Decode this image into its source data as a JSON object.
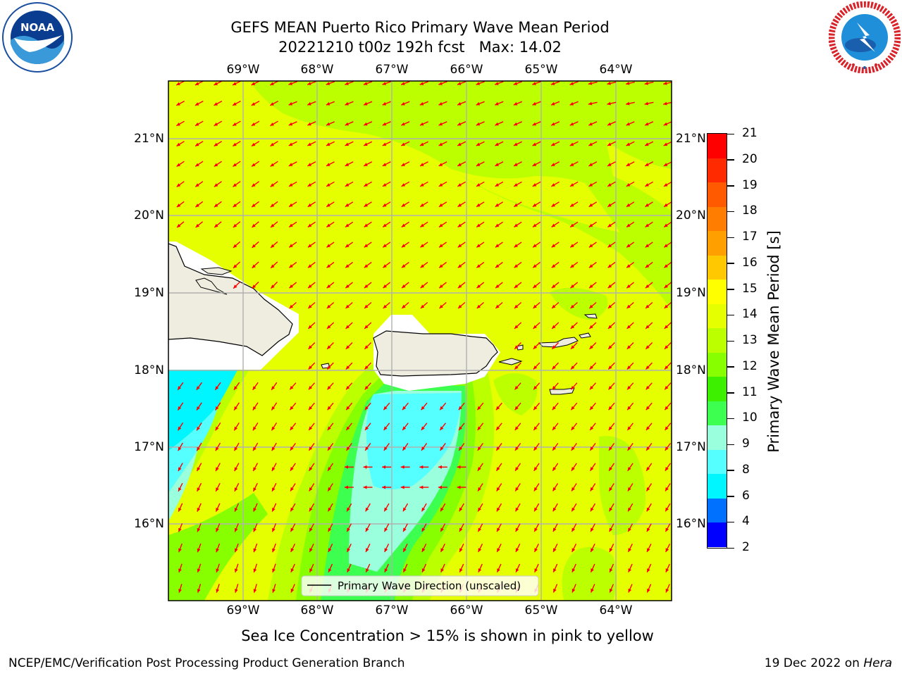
{
  "header": {
    "title_line1": "GEFS MEAN Puerto Rico Primary Wave Mean Period",
    "title_line2": "20221210 t00z 192h fcst   Max: 14.02"
  },
  "logos": {
    "noaa_text": "NOAA",
    "noaa_ring_text": "NATIONAL OCEANIC AND ATMOSPHERIC ADMINISTRATION · U.S. DEPARTMENT OF COMMERCE",
    "nws_ring_text": "NATIONAL WEATHER SERVICE"
  },
  "map": {
    "lon_labels": [
      "69°W",
      "68°W",
      "67°W",
      "66°W",
      "65°W",
      "64°W"
    ],
    "lat_labels": [
      "21°N",
      "20°N",
      "19°N",
      "18°N",
      "17°N",
      "16°N"
    ],
    "legend_label": "Primary Wave Direction (unscaled)",
    "arrow_color": "#ff0000",
    "land_color": "#efede0"
  },
  "colorbar": {
    "label": "Primary Wave Mean Period [s]",
    "ticks": [
      "21",
      "20",
      "19",
      "18",
      "17",
      "16",
      "15",
      "14",
      "13",
      "12",
      "11",
      "10",
      "9",
      "8",
      "6",
      "4",
      "2"
    ],
    "colors": [
      "#ff0000",
      "#ff2a00",
      "#ff5a00",
      "#ff7d00",
      "#ffa000",
      "#ffc800",
      "#ffff00",
      "#e6ff00",
      "#bbff00",
      "#88ff00",
      "#3cf000",
      "#3cff50",
      "#99ffdd",
      "#55ffff",
      "#00f6ff",
      "#0070ff",
      "#0000ff"
    ]
  },
  "footer": {
    "sea_ice_note": "Sea Ice Concentration > 15% is shown in pink to yellow",
    "branch": "NCEP/EMC/Verification Post Processing Product Generation Branch",
    "date": "19 Dec 2022 on ",
    "machine": "Hera"
  }
}
